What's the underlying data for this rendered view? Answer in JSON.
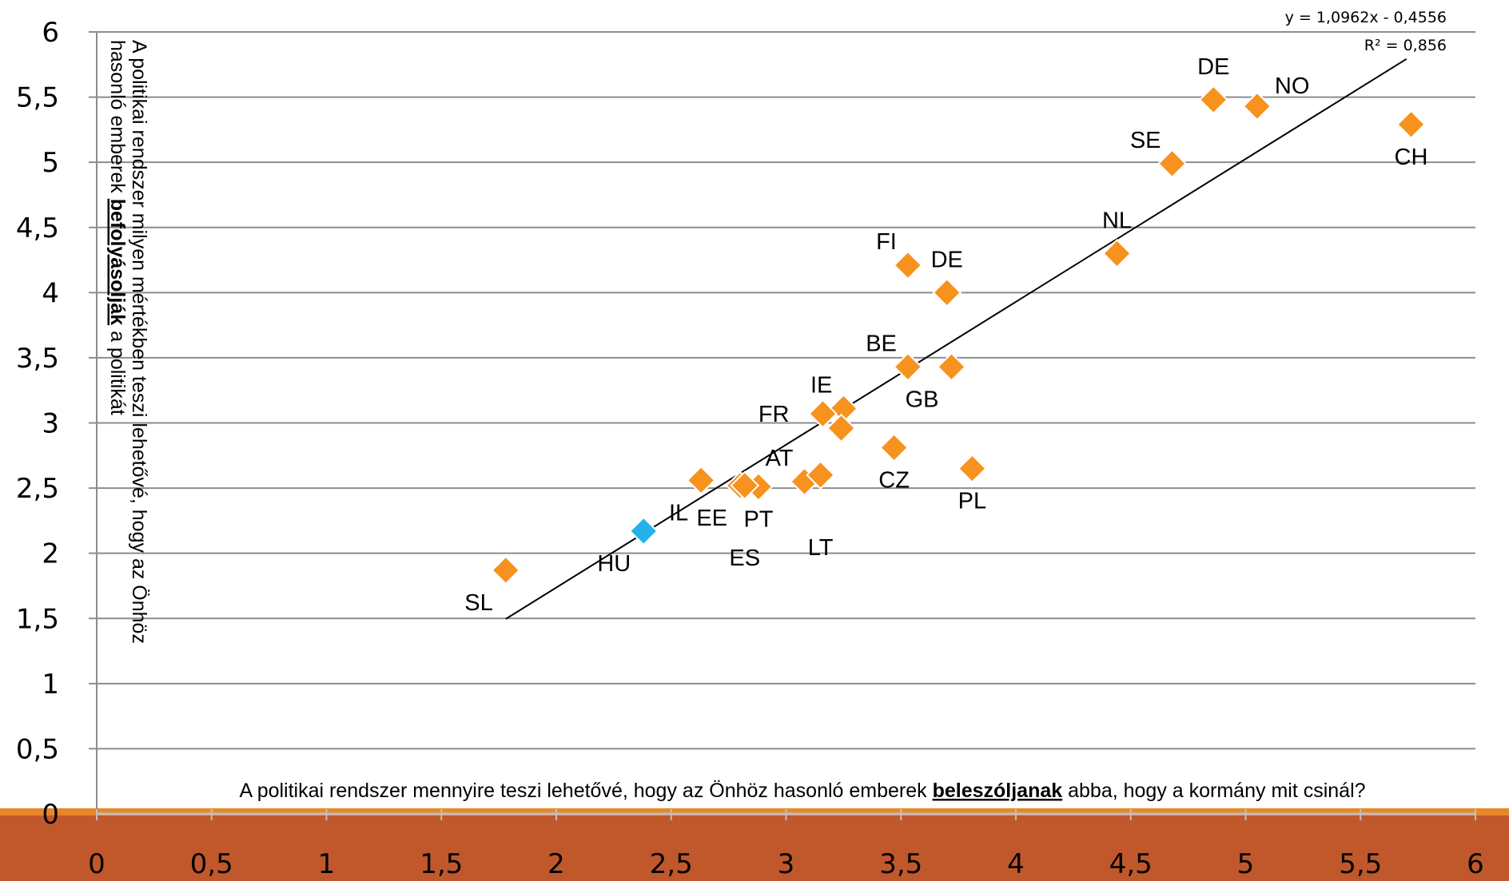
{
  "chart_data": {
    "type": "scatter",
    "title": "",
    "xlabel_parts": [
      {
        "text": "A politikai rendszer mennyire teszi lehetővé, hogy az Önhöz hasonló emberek ",
        "emph": false
      },
      {
        "text": "beleszóljanak",
        "emph": true
      },
      {
        "text": " abba, hogy a kormány mit csinál?",
        "emph": false
      }
    ],
    "ylabel_lines": [
      [
        {
          "text": "A politikai rendszer milyen mértékben teszi lehetővé, hogy az Önhöz",
          "emph": false
        }
      ],
      [
        {
          "text": "hasonló emberek ",
          "emph": false
        },
        {
          "text": "befolyásolják",
          "emph": true
        },
        {
          "text": " a politikát",
          "emph": false
        }
      ]
    ],
    "xlim": [
      0,
      6
    ],
    "ylim": [
      0,
      6
    ],
    "x_ticks": [
      "0",
      "0,5",
      "1",
      "1,5",
      "2",
      "2,5",
      "3",
      "3,5",
      "4",
      "4,5",
      "5",
      "5,5",
      "6"
    ],
    "y_ticks": [
      "0",
      "0,5",
      "1",
      "1,5",
      "2",
      "2,5",
      "3",
      "3,5",
      "4",
      "4,5",
      "5",
      "5,5",
      "6"
    ],
    "grid": "horizontal",
    "points": [
      {
        "label": "DE",
        "x": 4.86,
        "y": 5.48,
        "color": "#F7921E",
        "label_pos": "above"
      },
      {
        "label": "NO",
        "x": 5.05,
        "y": 5.43,
        "color": "#F7921E",
        "label_pos": "above-right"
      },
      {
        "label": "CH",
        "x": 5.72,
        "y": 5.29,
        "color": "#F7921E",
        "label_pos": "below"
      },
      {
        "label": "SE",
        "x": 4.68,
        "y": 4.99,
        "color": "#F7921E",
        "label_pos": "above-left"
      },
      {
        "label": "NL",
        "x": 4.44,
        "y": 4.3,
        "color": "#F7921E",
        "label_pos": "above"
      },
      {
        "label": "FI",
        "x": 3.53,
        "y": 4.21,
        "color": "#F7921E",
        "label_pos": "above-left"
      },
      {
        "label": "DE",
        "x": 3.7,
        "y": 4.0,
        "color": "#F7921E",
        "label_pos": "above"
      },
      {
        "label": "BE",
        "x": 3.53,
        "y": 3.43,
        "color": "#F7921E",
        "label_pos": "above-left"
      },
      {
        "label": "GB",
        "x": 3.72,
        "y": 3.43,
        "color": "#F7921E",
        "label_pos": "below-left"
      },
      {
        "label": "IE",
        "x": 3.25,
        "y": 3.11,
        "color": "#F7921E",
        "label_pos": "above-left"
      },
      {
        "label": "FR",
        "x": 3.16,
        "y": 3.07,
        "color": "#F7921E",
        "label_pos": "left"
      },
      {
        "label": "",
        "x": 3.24,
        "y": 2.96,
        "color": "#F7921E",
        "label_pos": "none"
      },
      {
        "label": "CZ",
        "x": 3.47,
        "y": 2.81,
        "color": "#F7921E",
        "label_pos": "below"
      },
      {
        "label": "PL",
        "x": 3.81,
        "y": 2.65,
        "color": "#F7921E",
        "label_pos": "below"
      },
      {
        "label": "AT",
        "x": 3.08,
        "y": 2.55,
        "color": "#F7921E",
        "label_pos": "above-left"
      },
      {
        "label": "LT",
        "x": 3.15,
        "y": 2.6,
        "color": "#F7921E",
        "label_pos": "far-below"
      },
      {
        "label": "IL",
        "x": 2.63,
        "y": 2.56,
        "color": "#F7921E",
        "label_pos": "below-left"
      },
      {
        "label": "EE",
        "x": 2.8,
        "y": 2.52,
        "color": "#F7921E",
        "label_pos": "below-left"
      },
      {
        "label": "PT",
        "x": 2.88,
        "y": 2.51,
        "color": "#F7921E",
        "label_pos": "below"
      },
      {
        "label": "ES",
        "x": 2.82,
        "y": 2.52,
        "color": "#F7921E",
        "label_pos": "far-below"
      },
      {
        "label": "HU",
        "x": 2.38,
        "y": 2.17,
        "color": "#23B3EA",
        "label_pos": "below-left"
      },
      {
        "label": "SL",
        "x": 1.78,
        "y": 1.87,
        "color": "#F7921E",
        "label_pos": "below-left"
      }
    ],
    "trendline": {
      "equation": "y = 1,0962x - 0,4556",
      "r_squared": "R² = 0,856",
      "slope": 1.0962,
      "intercept": -0.4556,
      "x_range": [
        1.78,
        5.7
      ]
    }
  },
  "colors": {
    "footer_band": "#C0582B",
    "footer_stripe": "#E8862A",
    "gridline": "#8C8C8C",
    "marker_orange": "#F7921E",
    "marker_blue": "#23B3EA"
  }
}
